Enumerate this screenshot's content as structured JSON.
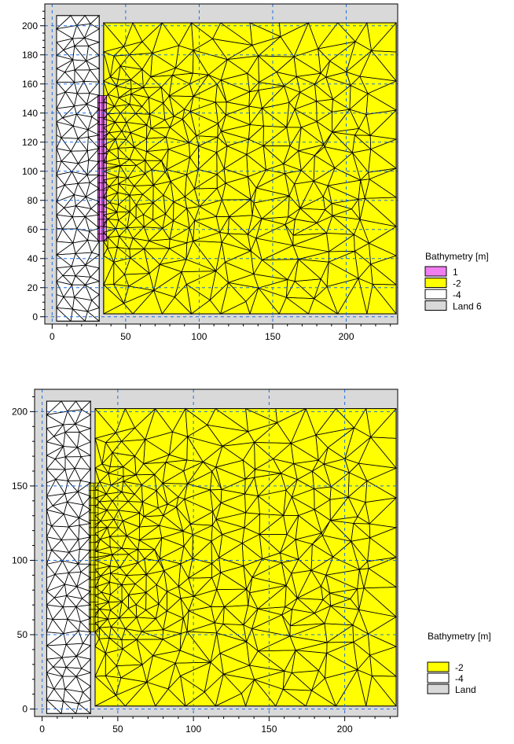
{
  "chart_data": [
    {
      "type": "heatmap",
      "title": "",
      "xlabel": "",
      "ylabel": "",
      "xlim": [
        -5,
        235
      ],
      "ylim": [
        -5,
        215
      ],
      "x_ticks": [
        0,
        50,
        100,
        150,
        200
      ],
      "y_ticks": [
        0,
        20,
        40,
        60,
        80,
        100,
        120,
        140,
        160,
        180,
        200
      ],
      "grid": true,
      "legend_position": "right-bottom",
      "legend": {
        "title": "Bathymetry [m]",
        "entries": [
          {
            "label": "1",
            "color": "#f07ef0"
          },
          {
            "label": "-2",
            "color": "#ffff00"
          },
          {
            "label": "-4",
            "color": "#ffffff"
          },
          {
            "label": "Land",
            "color": "#d9d9d9"
          }
        ],
        "extra": "6"
      },
      "regions": {
        "land": {
          "x": [
            -5,
            235
          ],
          "y": [
            -5,
            215
          ]
        },
        "deep_strip": {
          "x": [
            3,
            32
          ],
          "y": [
            -3,
            207
          ],
          "value": -4
        },
        "shallow_basin": {
          "x": [
            35,
            234
          ],
          "y": [
            2,
            202
          ],
          "value": -2
        },
        "elevated_zone": {
          "x": [
            31,
            37
          ],
          "y": [
            52,
            152
          ],
          "value": 1
        }
      }
    },
    {
      "type": "heatmap",
      "title": "",
      "xlabel": "",
      "ylabel": "",
      "xlim": [
        -5,
        235
      ],
      "ylim": [
        -5,
        215
      ],
      "x_ticks": [
        0,
        50,
        100,
        150,
        200
      ],
      "y_ticks": [
        0,
        50,
        100,
        150,
        200
      ],
      "grid": true,
      "legend_position": "right-bottom",
      "legend": {
        "title": "Bathymetry [m]",
        "entries": [
          {
            "label": "-2",
            "color": "#ffff00"
          },
          {
            "label": "-4",
            "color": "#ffffff"
          },
          {
            "label": "Land",
            "color": "#d9d9d9"
          }
        ]
      },
      "regions": {
        "land": {
          "x": [
            -5,
            235
          ],
          "y": [
            -5,
            215
          ]
        },
        "deep_strip": {
          "x": [
            3,
            32
          ],
          "y": [
            -3,
            207
          ],
          "value": -4
        },
        "shallow_basin": {
          "x": [
            35,
            234
          ],
          "y": [
            2,
            202
          ],
          "value": -2
        },
        "structured_zone": {
          "x": [
            31,
            37
          ],
          "y": [
            52,
            152
          ],
          "value": -2
        }
      }
    }
  ]
}
